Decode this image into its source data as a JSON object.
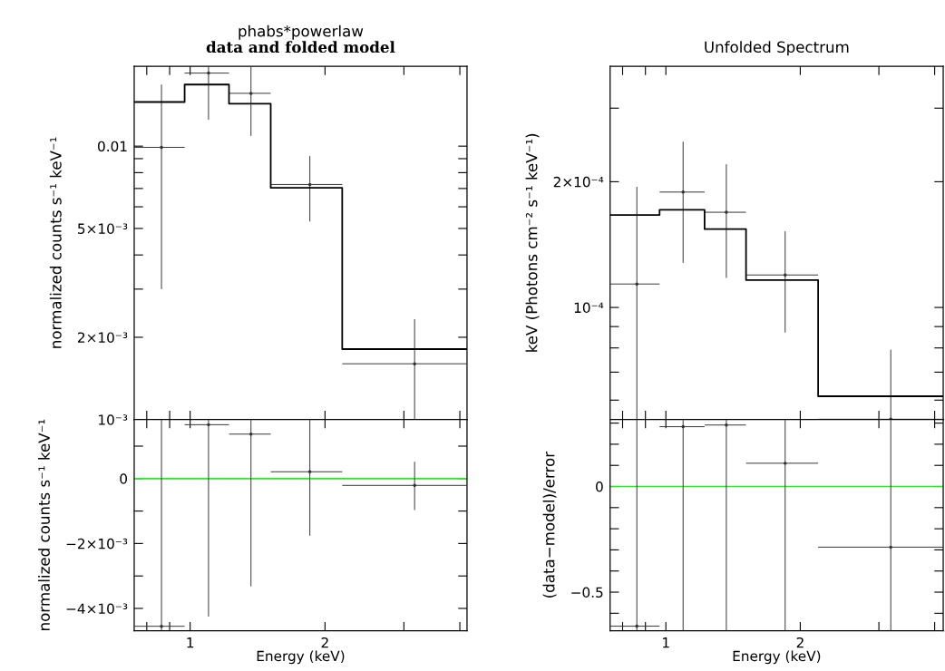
{
  "chart_data": [
    {
      "type": "scatter",
      "title": "phabs*powerlaw",
      "subtitle": "data and folded model",
      "ylabel": "normalized counts s⁻¹ keV⁻¹",
      "log": "xy",
      "tick_labels": "y",
      "xlim": [
        0.75,
        4.15
      ],
      "xticks": [
        {
          "value": 0.8,
          "label": null
        },
        {
          "value": 0.9,
          "label": null
        },
        1,
        2,
        {
          "value": 3,
          "label": null
        },
        {
          "value": 4,
          "label": null
        }
      ],
      "ylim": [
        0.001,
        0.0196
      ],
      "yticks": [
        {
          "value": 0.001,
          "label": "10⁻³"
        },
        {
          "value": 0.002,
          "label": "2×10⁻³"
        },
        {
          "value": 0.003,
          "label": null
        },
        {
          "value": 0.004,
          "label": null
        },
        {
          "value": 0.005,
          "label": "5×10⁻³"
        },
        {
          "value": 0.006,
          "label": null
        },
        {
          "value": 0.007,
          "label": null
        },
        {
          "value": 0.008,
          "label": null
        },
        {
          "value": 0.009,
          "label": null
        },
        {
          "value": 0.01,
          "label": "0.01"
        }
      ],
      "series": [
        {
          "color": "#333333",
          "x": [
            0.863,
            1.099,
            1.367,
            1.85,
            3.17
          ],
          "values": [
            0.0099,
            0.0185,
            0.0156,
            0.00724,
            0.0016
          ],
          "errors": [
            [
              0.003,
              0.0168
            ],
            [
              0.0125,
              0.0196
            ],
            [
              0.0109,
              0.0196
            ],
            [
              0.0053,
              0.0092
            ],
            [
              0.001,
              0.00233
            ]
          ],
          "xerrors": [
            [
              0.75,
              0.972
            ],
            [
              0.972,
              1.221
            ],
            [
              1.221,
              1.513
            ],
            [
              1.513,
              2.185
            ],
            [
              2.185,
              4.15
            ]
          ]
        },
        {
          "type": "step",
          "color": "#000000",
          "x": [
            0.75,
            0.972,
            1.221,
            1.513,
            2.185,
            4.15
          ],
          "values": [
            0.0145,
            0.0168,
            0.0143,
            0.00704,
            0.00181,
            0.00181
          ]
        }
      ]
    },
    {
      "type": "scatter",
      "title": "Unfolded Spectrum",
      "ylabel": "keV (Photons cm⁻² s⁻¹ keV⁻¹)",
      "log": "xy",
      "tick_labels": "y",
      "xlim": [
        0.75,
        4.18
      ],
      "xticks": [
        {
          "value": 0.8,
          "label": null
        },
        {
          "value": 0.9,
          "label": null
        },
        1,
        2,
        {
          "value": 3,
          "label": null
        },
        {
          "value": 4,
          "label": null
        }
      ],
      "ylim": [
        5.39e-05,
        0.000378
      ],
      "yticks": [
        {
          "value": 6e-05,
          "label": null
        },
        {
          "value": 7e-05,
          "label": null
        },
        {
          "value": 8e-05,
          "label": null
        },
        {
          "value": 9e-05,
          "label": null
        },
        {
          "value": 0.0001,
          "label": "10⁻⁴"
        },
        {
          "value": 0.0002,
          "label": "2×10⁻⁴"
        },
        {
          "value": 0.0003,
          "label": null
        }
      ],
      "series": [
        {
          "color": "#333333",
          "x": [
            0.861,
            1.093,
            1.366,
            1.85,
            3.19
          ],
          "values": [
            0.0001138,
            0.0001889,
            0.000169,
            0.0001196,
            5.4e-05
          ],
          "errors": [
            [
              5.39e-05,
              0.0001944
            ],
            [
              0.0001279,
              0.0002494
            ],
            [
              0.0001177,
              0.0002202
            ],
            [
              8.71e-05,
              0.0001522
            ],
            [
              5.39e-05,
              7.92e-05
            ]
          ],
          "xerrors": [
            [
              0.75,
              0.968
            ],
            [
              0.968,
              1.221
            ],
            [
              1.221,
              1.512
            ],
            [
              1.512,
              2.193
            ],
            [
              2.193,
              4.18
            ]
          ]
        },
        {
          "type": "step",
          "color": "#000000",
          "x": [
            0.75,
            0.968,
            1.221,
            1.512,
            2.193,
            4.18
          ],
          "values": [
            0.0001665,
            0.0001713,
            0.000154,
            0.0001163,
            6.13e-05,
            6.13e-05
          ]
        }
      ]
    },
    {
      "type": "scatter",
      "xlabel": "Energy (keV)",
      "ylabel": "normalized counts s⁻¹ keV⁻¹",
      "log": "x",
      "xlim": [
        0.75,
        4.15
      ],
      "xticks": [
        {
          "value": 0.8,
          "label": null
        },
        {
          "value": 0.9,
          "label": null
        },
        1,
        2,
        {
          "value": 3,
          "label": null
        },
        {
          "value": 4,
          "label": null
        }
      ],
      "ylim": [
        -0.00469,
        0.00182
      ],
      "yticks": [
        {
          "value": -0.004,
          "label": "−4×10⁻³"
        },
        {
          "value": -0.003,
          "label": null
        },
        {
          "value": -0.002,
          "label": "−2×10⁻³"
        },
        {
          "value": -0.001,
          "label": null
        },
        0,
        {
          "value": 0.001,
          "label": null
        }
      ],
      "ref_lines": [
        {
          "axis": "y",
          "value": 0,
          "color": "#22ee22"
        }
      ],
      "series": [
        {
          "color": "#333333",
          "x": [
            0.863,
            1.099,
            1.367,
            1.85,
            3.17
          ],
          "values": [
            -0.00455,
            0.00166,
            0.00137,
            0.00021,
            -0.00021
          ],
          "errors": [
            [
              -0.00469,
              0.00182
            ],
            [
              -0.00425,
              0.00182
            ],
            [
              -0.00332,
              0.00182
            ],
            [
              -0.00176,
              0.00182
            ],
            [
              -0.00097,
              0.00052
            ]
          ],
          "xerrors": [
            [
              0.75,
              0.972
            ],
            [
              0.972,
              1.221
            ],
            [
              1.221,
              1.513
            ],
            [
              1.513,
              2.185
            ],
            [
              2.185,
              4.15
            ]
          ]
        }
      ]
    },
    {
      "type": "scatter",
      "xlabel": "Energy (keV)",
      "ylabel": "(data−model)/error",
      "log": "x",
      "xlim": [
        0.75,
        4.18
      ],
      "xticks": [
        {
          "value": 0.8,
          "label": null
        },
        {
          "value": 0.9,
          "label": null
        },
        1,
        2,
        {
          "value": 3,
          "label": null
        },
        {
          "value": 4,
          "label": null
        }
      ],
      "ylim": [
        -0.683,
        0.317
      ],
      "yticks": [
        {
          "value": -0.6,
          "label": null
        },
        {
          "value": -0.5,
          "label": "−0.5"
        },
        {
          "value": -0.4,
          "label": null
        },
        {
          "value": -0.3,
          "label": null
        },
        {
          "value": -0.2,
          "label": null
        },
        {
          "value": -0.1,
          "label": null
        },
        0,
        {
          "value": 0.1,
          "label": null
        },
        {
          "value": 0.2,
          "label": null
        },
        {
          "value": 0.3,
          "label": null
        }
      ],
      "ref_lines": [
        {
          "axis": "y",
          "value": 0,
          "color": "#22ee22"
        }
      ],
      "series": [
        {
          "color": "#333333",
          "x": [
            0.861,
            1.093,
            1.366,
            1.85,
            3.19
          ],
          "values": [
            -0.661,
            0.283,
            0.291,
            0.11,
            -0.287
          ],
          "errors": [
            [
              -0.683,
              0.317
            ],
            [
              -0.683,
              0.317
            ],
            [
              -0.683,
              0.317
            ],
            [
              -0.683,
              0.317
            ],
            [
              -0.683,
              0.317
            ]
          ],
          "xerrors": [
            [
              0.75,
              0.968
            ],
            [
              0.968,
              1.221
            ],
            [
              1.221,
              1.512
            ],
            [
              1.512,
              2.193
            ],
            [
              2.193,
              4.18
            ]
          ]
        }
      ]
    }
  ]
}
